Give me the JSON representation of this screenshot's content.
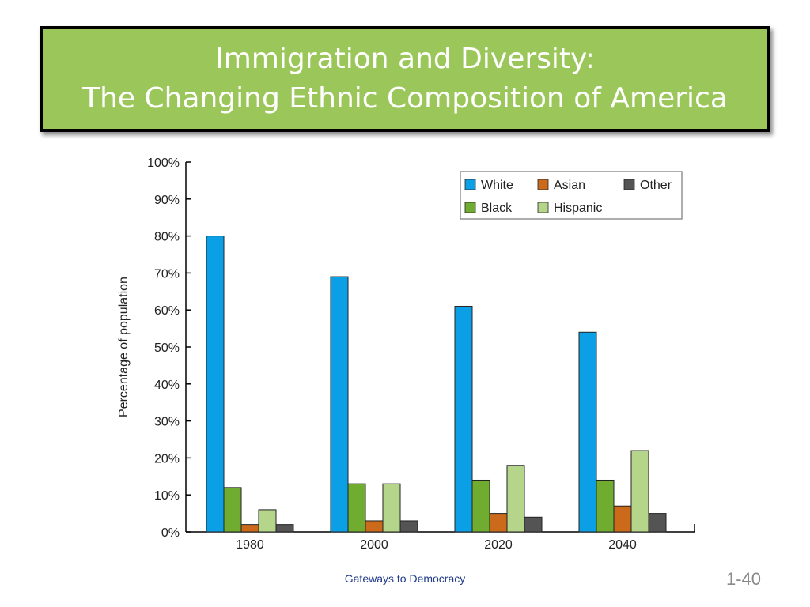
{
  "slide": {
    "title_line1": "Immigration and Diversity:",
    "title_line2": "The Changing Ethnic Composition of America",
    "title_bg": "#9bc65a",
    "footer": "Gateways to Democracy",
    "page_number": "1-40"
  },
  "chart_data": {
    "type": "bar",
    "title": "",
    "xlabel": "",
    "ylabel": "Percentage of population",
    "categories": [
      "1980",
      "2000",
      "2020",
      "2040"
    ],
    "ylim": [
      0,
      100
    ],
    "yticks": [
      "0%",
      "10%",
      "20%",
      "30%",
      "40%",
      "50%",
      "60%",
      "70%",
      "80%",
      "90%",
      "100%"
    ],
    "grid": false,
    "legend_position": "top-right",
    "series": [
      {
        "name": "White",
        "color": "#0ba0e6",
        "values": [
          80,
          69,
          61,
          54
        ]
      },
      {
        "name": "Black",
        "color": "#6fac2f",
        "values": [
          12,
          13,
          14,
          14
        ]
      },
      {
        "name": "Asian",
        "color": "#cc6a1c",
        "values": [
          2,
          3,
          5,
          7
        ]
      },
      {
        "name": "Hispanic",
        "color": "#b5d68a",
        "values": [
          6,
          13,
          18,
          22
        ]
      },
      {
        "name": "Other",
        "color": "#545454",
        "values": [
          2,
          3,
          4,
          5
        ]
      }
    ],
    "legend_order": [
      "White",
      "Asian",
      "Other",
      "Black",
      "Hispanic"
    ]
  }
}
